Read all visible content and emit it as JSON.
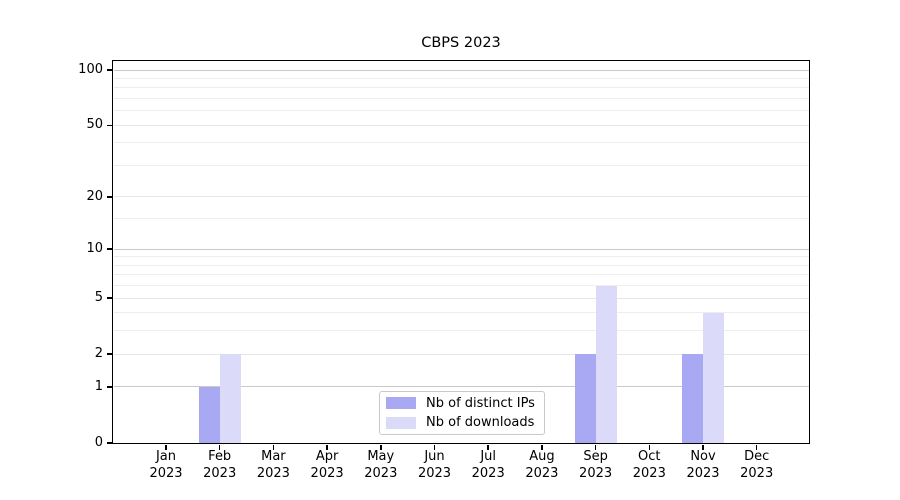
{
  "chart_data": {
    "type": "bar",
    "title": "CBPS 2023",
    "x_tick_months": [
      "Jan",
      "Feb",
      "Mar",
      "Apr",
      "May",
      "Jun",
      "Jul",
      "Aug",
      "Sep",
      "Oct",
      "Nov",
      "Dec"
    ],
    "x_tick_year": "2023",
    "series": [
      {
        "name": "Nb of distinct IPs",
        "color": "#a9a8f2",
        "values": [
          0,
          1,
          0,
          0,
          0,
          0,
          0,
          0,
          2,
          0,
          2,
          0
        ]
      },
      {
        "name": "Nb of downloads",
        "color": "#dbdaf8",
        "values": [
          0,
          2,
          0,
          0,
          0,
          0,
          0,
          0,
          6,
          0,
          4,
          0
        ]
      }
    ],
    "yscale": "log10(1+v)",
    "ylim": [
      0,
      112
    ],
    "y_major_ticks": [
      0,
      1,
      2,
      5,
      10,
      20,
      50,
      100
    ],
    "y_decade_gridlines": [
      1,
      10,
      100
    ],
    "y_mid_gridlines": [
      2,
      5,
      20,
      50
    ],
    "y_minor_gridlines": [
      3,
      4,
      6,
      7,
      8,
      9,
      15,
      30,
      40,
      60,
      70,
      80,
      90
    ],
    "grid": "on",
    "legend": {
      "position": "lower center"
    },
    "colors": {
      "spine": "#000000",
      "grid_decade": "#c9c9c9",
      "grid_mid": "#e6e6e6",
      "grid_minor": "#eeeeee"
    }
  }
}
